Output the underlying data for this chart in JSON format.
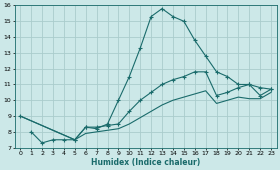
{
  "xlabel": "Humidex (Indice chaleur)",
  "bg_color": "#cce8e8",
  "grid_color": "#aacccc",
  "line_color": "#1a6b6b",
  "xlim": [
    -0.5,
    23.5
  ],
  "ylim": [
    7,
    16
  ],
  "xticks": [
    0,
    1,
    2,
    3,
    4,
    5,
    6,
    7,
    8,
    9,
    10,
    11,
    12,
    13,
    14,
    15,
    16,
    17,
    18,
    19,
    20,
    21,
    22,
    23
  ],
  "yticks": [
    7,
    8,
    9,
    10,
    11,
    12,
    13,
    14,
    15,
    16
  ],
  "line1_x": [
    1,
    2,
    3,
    4,
    5,
    6,
    7,
    8,
    9,
    10,
    11,
    12,
    13,
    14,
    15,
    16,
    17,
    18,
    19,
    20,
    21,
    22,
    23
  ],
  "line1_y": [
    8.0,
    7.3,
    7.5,
    7.5,
    7.5,
    8.3,
    8.2,
    8.5,
    10.0,
    11.5,
    13.3,
    15.3,
    15.8,
    15.3,
    15.0,
    13.8,
    12.8,
    11.8,
    11.5,
    11.0,
    11.0,
    10.8,
    10.7
  ],
  "line2_x": [
    0,
    5,
    6,
    7,
    8,
    9,
    10,
    11,
    12,
    13,
    14,
    15,
    16,
    17,
    18,
    19,
    20,
    21,
    22,
    23
  ],
  "line2_y": [
    9.0,
    7.5,
    8.3,
    8.3,
    8.4,
    8.5,
    9.3,
    10.0,
    10.5,
    11.0,
    11.3,
    11.5,
    11.8,
    11.8,
    10.3,
    10.5,
    10.8,
    11.0,
    10.3,
    10.7
  ],
  "line3_x": [
    0,
    5,
    6,
    7,
    8,
    9,
    10,
    11,
    12,
    13,
    14,
    15,
    16,
    17,
    18,
    19,
    20,
    21,
    22,
    23
  ],
  "line3_y": [
    9.0,
    7.5,
    7.9,
    8.0,
    8.1,
    8.2,
    8.5,
    8.9,
    9.3,
    9.7,
    10.0,
    10.2,
    10.4,
    10.6,
    9.8,
    10.0,
    10.2,
    10.1,
    10.1,
    10.5
  ]
}
